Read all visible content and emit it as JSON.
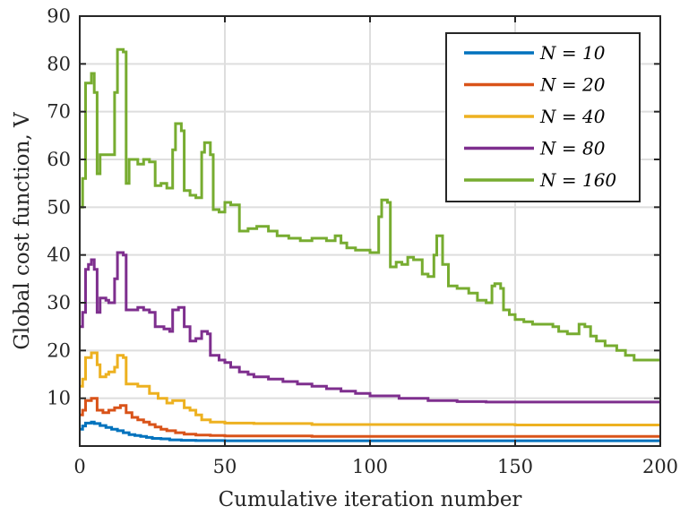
{
  "chart_data": {
    "type": "line",
    "xlabel": "Cumulative iteration number",
    "ylabel": "Global cost function, V",
    "xlim": [
      0,
      200
    ],
    "ylim": [
      0,
      90
    ],
    "xticks": [
      "0",
      "50",
      "100",
      "150",
      "200"
    ],
    "yticks": [
      "10",
      "20",
      "30",
      "40",
      "50",
      "60",
      "70",
      "80",
      "90"
    ],
    "grid": true,
    "legend_position": "top-right",
    "series": [
      {
        "name": "N = 10",
        "color": "#0072BD",
        "step": true,
        "points": [
          [
            0,
            3.5
          ],
          [
            1,
            4.2
          ],
          [
            2,
            4.8
          ],
          [
            4,
            5.0
          ],
          [
            5,
            4.7
          ],
          [
            7,
            4.3
          ],
          [
            9,
            3.9
          ],
          [
            11,
            3.5
          ],
          [
            13,
            3.2
          ],
          [
            15,
            2.8
          ],
          [
            17,
            2.4
          ],
          [
            19,
            2.2
          ],
          [
            21,
            2.0
          ],
          [
            23,
            1.8
          ],
          [
            25,
            1.6
          ],
          [
            28,
            1.5
          ],
          [
            31,
            1.3
          ],
          [
            35,
            1.2
          ],
          [
            40,
            1.15
          ],
          [
            50,
            1.1
          ],
          [
            60,
            1.1
          ],
          [
            80,
            1.1
          ],
          [
            100,
            1.1
          ],
          [
            150,
            1.1
          ],
          [
            200,
            1.1
          ]
        ]
      },
      {
        "name": "N = 20",
        "color": "#D95319",
        "step": true,
        "points": [
          [
            0,
            6.5
          ],
          [
            1,
            7.5
          ],
          [
            2,
            9.5
          ],
          [
            4,
            10.0
          ],
          [
            6,
            7.5
          ],
          [
            8,
            7.0
          ],
          [
            10,
            7.5
          ],
          [
            12,
            8.0
          ],
          [
            14,
            8.5
          ],
          [
            16,
            7.0
          ],
          [
            18,
            6.0
          ],
          [
            20,
            5.5
          ],
          [
            22,
            5.0
          ],
          [
            24,
            4.5
          ],
          [
            26,
            4.0
          ],
          [
            28,
            3.5
          ],
          [
            30,
            3.2
          ],
          [
            33,
            2.8
          ],
          [
            36,
            2.5
          ],
          [
            40,
            2.3
          ],
          [
            45,
            2.2
          ],
          [
            50,
            2.1
          ],
          [
            60,
            2.1
          ],
          [
            80,
            2.0
          ],
          [
            100,
            2.0
          ],
          [
            150,
            2.0
          ],
          [
            200,
            2.0
          ]
        ]
      },
      {
        "name": "N = 40",
        "color": "#EDB120",
        "step": true,
        "points": [
          [
            0,
            12.5
          ],
          [
            1,
            14.0
          ],
          [
            2,
            18.5
          ],
          [
            4,
            19.5
          ],
          [
            6,
            17.0
          ],
          [
            7,
            14.5
          ],
          [
            9,
            15.0
          ],
          [
            10,
            15.5
          ],
          [
            12,
            16.5
          ],
          [
            13,
            19.0
          ],
          [
            15,
            18.5
          ],
          [
            16,
            13.0
          ],
          [
            20,
            12.5
          ],
          [
            24,
            11.0
          ],
          [
            27,
            10.0
          ],
          [
            30,
            9.0
          ],
          [
            32,
            9.5
          ],
          [
            34,
            9.5
          ],
          [
            36,
            8.0
          ],
          [
            38,
            7.5
          ],
          [
            40,
            6.5
          ],
          [
            42,
            5.5
          ],
          [
            45,
            5.0
          ],
          [
            50,
            4.8
          ],
          [
            60,
            4.7
          ],
          [
            80,
            4.5
          ],
          [
            100,
            4.5
          ],
          [
            120,
            4.5
          ],
          [
            150,
            4.4
          ],
          [
            200,
            4.4
          ]
        ]
      },
      {
        "name": "N = 80",
        "color": "#7E2F8E",
        "step": true,
        "points": [
          [
            0,
            25.0
          ],
          [
            1,
            28.0
          ],
          [
            2,
            37.0
          ],
          [
            3,
            38.0
          ],
          [
            4,
            39.0
          ],
          [
            5,
            37.0
          ],
          [
            6,
            28.0
          ],
          [
            7,
            31.0
          ],
          [
            9,
            30.5
          ],
          [
            10,
            30.0
          ],
          [
            12,
            35.0
          ],
          [
            13,
            40.5
          ],
          [
            15,
            40.0
          ],
          [
            16,
            28.5
          ],
          [
            20,
            29.0
          ],
          [
            22,
            28.5
          ],
          [
            24,
            28.0
          ],
          [
            26,
            25.0
          ],
          [
            29,
            24.5
          ],
          [
            31,
            24.0
          ],
          [
            32,
            28.5
          ],
          [
            34,
            29.0
          ],
          [
            36,
            25.0
          ],
          [
            38,
            22.0
          ],
          [
            40,
            22.5
          ],
          [
            42,
            24.0
          ],
          [
            44,
            23.5
          ],
          [
            45,
            19.0
          ],
          [
            48,
            18.0
          ],
          [
            50,
            17.5
          ],
          [
            52,
            16.5
          ],
          [
            55,
            15.5
          ],
          [
            58,
            15.0
          ],
          [
            60,
            14.5
          ],
          [
            65,
            14.0
          ],
          [
            70,
            13.5
          ],
          [
            75,
            13.0
          ],
          [
            80,
            12.5
          ],
          [
            85,
            12.0
          ],
          [
            90,
            11.5
          ],
          [
            95,
            11.0
          ],
          [
            100,
            10.5
          ],
          [
            110,
            10.0
          ],
          [
            120,
            9.5
          ],
          [
            130,
            9.3
          ],
          [
            140,
            9.2
          ],
          [
            150,
            9.2
          ],
          [
            170,
            9.2
          ],
          [
            200,
            9.2
          ]
        ]
      },
      {
        "name": "N = 160",
        "color": "#77AC30",
        "step": true,
        "points": [
          [
            0,
            50.0
          ],
          [
            1,
            56.0
          ],
          [
            2,
            76.0
          ],
          [
            4,
            78.0
          ],
          [
            5,
            74.0
          ],
          [
            6,
            57.0
          ],
          [
            7,
            61.0
          ],
          [
            9,
            61.0
          ],
          [
            12,
            74.0
          ],
          [
            13,
            83.0
          ],
          [
            15,
            82.5
          ],
          [
            16,
            55.0
          ],
          [
            17,
            60.0
          ],
          [
            20,
            59.0
          ],
          [
            22,
            60.0
          ],
          [
            24,
            59.5
          ],
          [
            26,
            54.5
          ],
          [
            28,
            55.0
          ],
          [
            30,
            54.0
          ],
          [
            32,
            62.0
          ],
          [
            33,
            67.5
          ],
          [
            35,
            66.0
          ],
          [
            36,
            53.5
          ],
          [
            38,
            52.5
          ],
          [
            40,
            52.0
          ],
          [
            42,
            61.5
          ],
          [
            43,
            63.5
          ],
          [
            45,
            61.0
          ],
          [
            46,
            49.5
          ],
          [
            48,
            49.0
          ],
          [
            50,
            51.0
          ],
          [
            52,
            50.5
          ],
          [
            55,
            45.0
          ],
          [
            58,
            45.5
          ],
          [
            61,
            46.0
          ],
          [
            65,
            45.0
          ],
          [
            68,
            44.0
          ],
          [
            72,
            43.5
          ],
          [
            76,
            43.0
          ],
          [
            80,
            43.5
          ],
          [
            85,
            43.0
          ],
          [
            88,
            44.0
          ],
          [
            90,
            42.5
          ],
          [
            92,
            41.5
          ],
          [
            95,
            41.0
          ],
          [
            100,
            40.5
          ],
          [
            103,
            48.0
          ],
          [
            104,
            51.5
          ],
          [
            106,
            51.0
          ],
          [
            107,
            37.5
          ],
          [
            109,
            38.5
          ],
          [
            111,
            38.0
          ],
          [
            113,
            39.5
          ],
          [
            115,
            39.0
          ],
          [
            118,
            36.0
          ],
          [
            120,
            35.5
          ],
          [
            122,
            40.0
          ],
          [
            123,
            44.0
          ],
          [
            125,
            38.0
          ],
          [
            127,
            33.5
          ],
          [
            130,
            33.0
          ],
          [
            134,
            32.0
          ],
          [
            137,
            30.5
          ],
          [
            140,
            30.0
          ],
          [
            142,
            33.5
          ],
          [
            143,
            34.0
          ],
          [
            145,
            33.0
          ],
          [
            146,
            28.5
          ],
          [
            148,
            27.5
          ],
          [
            150,
            26.5
          ],
          [
            153,
            26.0
          ],
          [
            156,
            25.5
          ],
          [
            160,
            25.5
          ],
          [
            163,
            25.0
          ],
          [
            165,
            24.0
          ],
          [
            168,
            23.5
          ],
          [
            170,
            23.5
          ],
          [
            172,
            25.5
          ],
          [
            174,
            25.0
          ],
          [
            176,
            23.0
          ],
          [
            178,
            22.0
          ],
          [
            181,
            21.0
          ],
          [
            185,
            20.0
          ],
          [
            188,
            19.0
          ],
          [
            191,
            18.0
          ],
          [
            195,
            18.0
          ],
          [
            198,
            18.0
          ],
          [
            200,
            18.0
          ]
        ]
      }
    ]
  }
}
